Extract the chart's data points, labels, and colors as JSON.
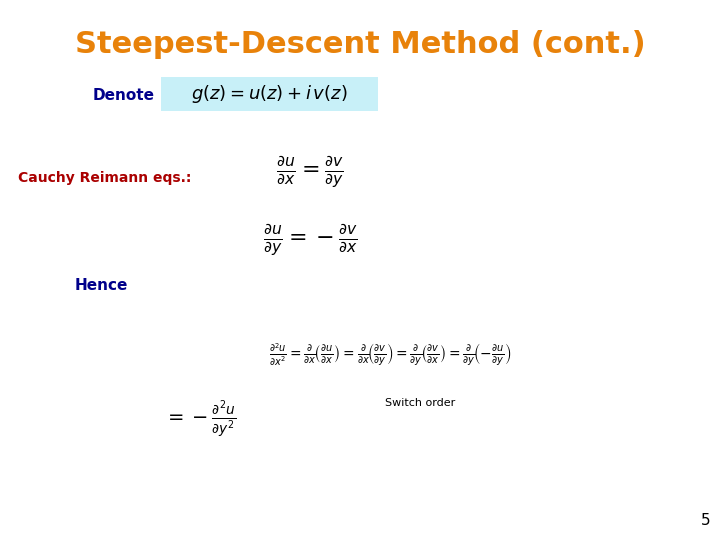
{
  "title": "Steepest-Descent Method (cont.)",
  "title_color": "#E8820A",
  "title_fontsize": 22,
  "background_color": "#FFFFFF",
  "denote_label": "Denote",
  "denote_color": "#00008B",
  "denote_label_fontsize": 11,
  "denote_box_color": "#C8F0F8",
  "cauchy_label": "Cauchy Reimann eqs.:",
  "cauchy_color": "#AA0000",
  "cauchy_fontsize": 10,
  "hence_label": "Hence",
  "hence_color": "#00008B",
  "hence_fontsize": 11,
  "switch_order_label": "Switch order",
  "switch_order_color": "#000000",
  "switch_order_fontsize": 8,
  "page_number": "5",
  "page_fontsize": 11,
  "eq_color": "#000000",
  "eq_fontsize_large": 13,
  "eq_fontsize_medium": 11,
  "eq_fontsize_small": 9
}
